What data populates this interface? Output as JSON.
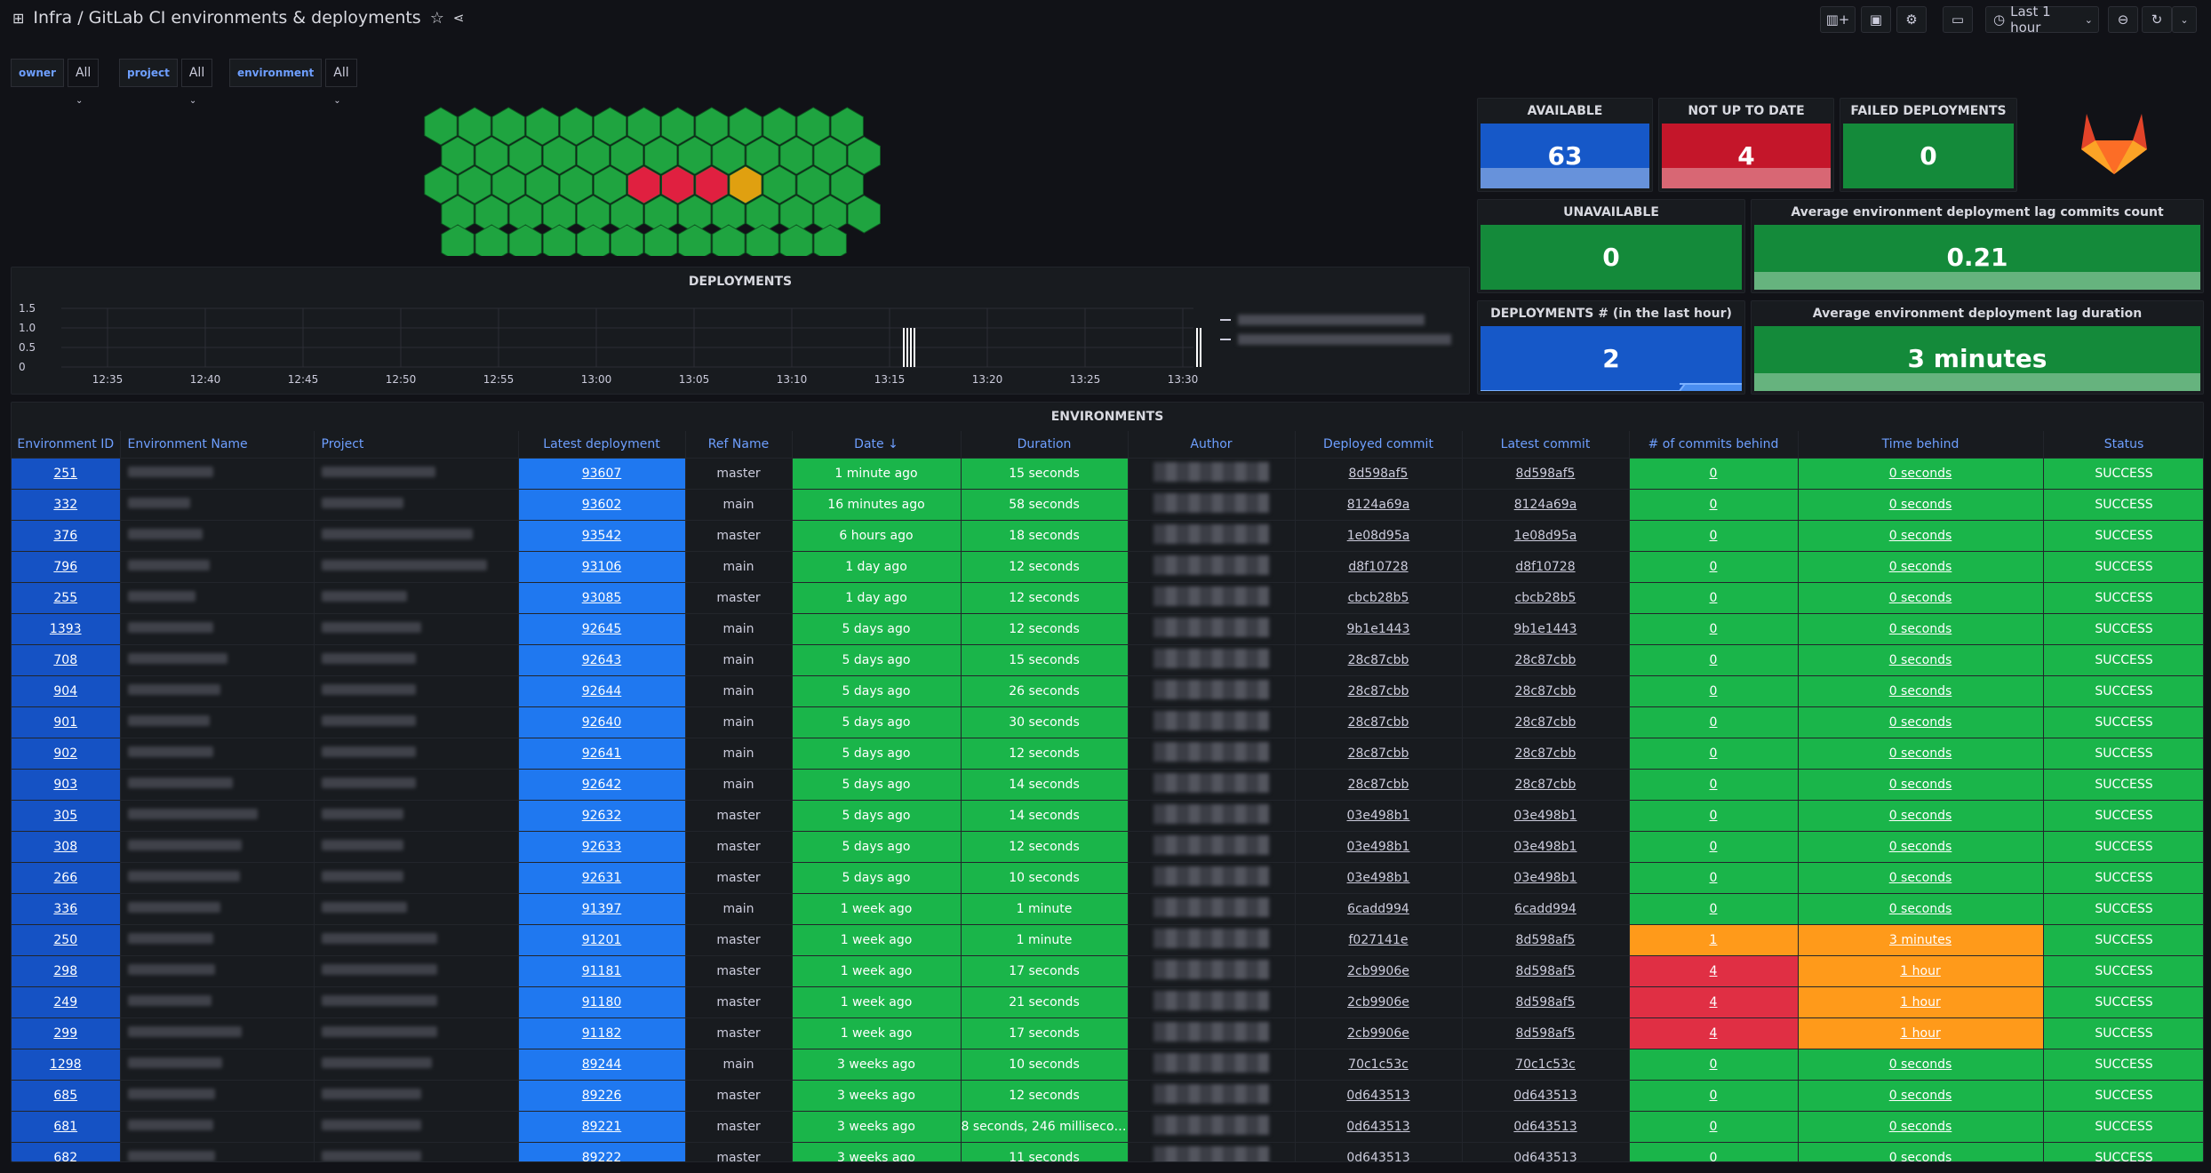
{
  "header": {
    "title": "Infra / GitLab CI environments & deployments",
    "time_range": "Last 1 hour"
  },
  "variables": [
    {
      "label": "owner",
      "value": "All"
    },
    {
      "label": "project",
      "value": "All"
    },
    {
      "label": "environment",
      "value": "All"
    }
  ],
  "stats": {
    "available": {
      "title": "AVAILABLE",
      "value": "63"
    },
    "not_up_to_date": {
      "title": "NOT UP TO DATE",
      "value": "4"
    },
    "failed": {
      "title": "FAILED DEPLOYMENTS",
      "value": "0"
    },
    "unavailable": {
      "title": "UNAVAILABLE",
      "value": "0"
    },
    "avg_lag_commits": {
      "title": "Average environment deployment lag commits count",
      "value": "0.21"
    },
    "deployments_hour": {
      "title": "DEPLOYMENTS # (in the last hour)",
      "value": "2"
    },
    "avg_lag_duration": {
      "title": "Average environment deployment lag duration",
      "value": "3 minutes"
    }
  },
  "hexmap": {
    "rows": 5,
    "cols": [
      13,
      13,
      13,
      13,
      12
    ],
    "red": [
      [
        2,
        6
      ],
      [
        2,
        7
      ],
      [
        2,
        8
      ]
    ],
    "yellow": [
      [
        2,
        9
      ]
    ],
    "colors": {
      "green": "#1fa440",
      "red": "#e02040",
      "yellow": "#e0a010"
    }
  },
  "chart_data": {
    "type": "bar",
    "title": "DEPLOYMENTS",
    "x": [
      "12:35",
      "12:40",
      "12:45",
      "12:50",
      "12:55",
      "13:00",
      "13:05",
      "13:10",
      "13:15",
      "13:20",
      "13:25",
      "13:30"
    ],
    "yticks": [
      "1.5",
      "1.0",
      "0.5",
      "0"
    ],
    "ylim": [
      0,
      1.5
    ],
    "bars": [
      {
        "x": "13:16",
        "value": 1
      },
      {
        "x": "13:31",
        "value": 1
      }
    ]
  },
  "table": {
    "title": "ENVIRONMENTS",
    "columns": [
      "Environment ID",
      "Environment Name",
      "Project",
      "Latest deployment",
      "Ref Name",
      "Date ↓",
      "Duration",
      "Author",
      "Deployed commit",
      "Latest commit",
      "# of commits behind",
      "Time behind",
      "Status"
    ],
    "rows": [
      [
        "251",
        "master",
        "1 minute ago",
        "15 seconds",
        "8d598af5",
        "8d598af5",
        "0",
        "0 seconds",
        "SUCCESS",
        "93607"
      ],
      [
        "332",
        "main",
        "16 minutes ago",
        "58 seconds",
        "8124a69a",
        "8124a69a",
        "0",
        "0 seconds",
        "SUCCESS",
        "93602"
      ],
      [
        "376",
        "master",
        "6 hours ago",
        "18 seconds",
        "1e08d95a",
        "1e08d95a",
        "0",
        "0 seconds",
        "SUCCESS",
        "93542"
      ],
      [
        "796",
        "main",
        "1 day ago",
        "12 seconds",
        "d8f10728",
        "d8f10728",
        "0",
        "0 seconds",
        "SUCCESS",
        "93106"
      ],
      [
        "255",
        "master",
        "1 day ago",
        "12 seconds",
        "cbcb28b5",
        "cbcb28b5",
        "0",
        "0 seconds",
        "SUCCESS",
        "93085"
      ],
      [
        "1393",
        "main",
        "5 days ago",
        "12 seconds",
        "9b1e1443",
        "9b1e1443",
        "0",
        "0 seconds",
        "SUCCESS",
        "92645"
      ],
      [
        "708",
        "main",
        "5 days ago",
        "15 seconds",
        "28c87cbb",
        "28c87cbb",
        "0",
        "0 seconds",
        "SUCCESS",
        "92643"
      ],
      [
        "904",
        "main",
        "5 days ago",
        "26 seconds",
        "28c87cbb",
        "28c87cbb",
        "0",
        "0 seconds",
        "SUCCESS",
        "92644"
      ],
      [
        "901",
        "main",
        "5 days ago",
        "30 seconds",
        "28c87cbb",
        "28c87cbb",
        "0",
        "0 seconds",
        "SUCCESS",
        "92640"
      ],
      [
        "902",
        "main",
        "5 days ago",
        "12 seconds",
        "28c87cbb",
        "28c87cbb",
        "0",
        "0 seconds",
        "SUCCESS",
        "92641"
      ],
      [
        "903",
        "main",
        "5 days ago",
        "14 seconds",
        "28c87cbb",
        "28c87cbb",
        "0",
        "0 seconds",
        "SUCCESS",
        "92642"
      ],
      [
        "305",
        "master",
        "5 days ago",
        "14 seconds",
        "03e498b1",
        "03e498b1",
        "0",
        "0 seconds",
        "SUCCESS",
        "92632"
      ],
      [
        "308",
        "master",
        "5 days ago",
        "12 seconds",
        "03e498b1",
        "03e498b1",
        "0",
        "0 seconds",
        "SUCCESS",
        "92633"
      ],
      [
        "266",
        "master",
        "5 days ago",
        "10 seconds",
        "03e498b1",
        "03e498b1",
        "0",
        "0 seconds",
        "SUCCESS",
        "92631"
      ],
      [
        "336",
        "main",
        "1 week ago",
        "1 minute",
        "6cadd994",
        "6cadd994",
        "0",
        "0 seconds",
        "SUCCESS",
        "91397"
      ],
      [
        "250",
        "master",
        "1 week ago",
        "1 minute",
        "f027141e",
        "8d598af5",
        "1",
        "3 minutes",
        "SUCCESS",
        "91201"
      ],
      [
        "298",
        "master",
        "1 week ago",
        "17 seconds",
        "2cb9906e",
        "8d598af5",
        "4",
        "1 hour",
        "SUCCESS",
        "91181"
      ],
      [
        "249",
        "master",
        "1 week ago",
        "21 seconds",
        "2cb9906e",
        "8d598af5",
        "4",
        "1 hour",
        "SUCCESS",
        "91180"
      ],
      [
        "299",
        "master",
        "1 week ago",
        "17 seconds",
        "2cb9906e",
        "8d598af5",
        "4",
        "1 hour",
        "SUCCESS",
        "91182"
      ],
      [
        "1298",
        "main",
        "3 weeks ago",
        "10 seconds",
        "70c1c53c",
        "70c1c53c",
        "0",
        "0 seconds",
        "SUCCESS",
        "89244"
      ],
      [
        "685",
        "master",
        "3 weeks ago",
        "12 seconds",
        "0d643513",
        "0d643513",
        "0",
        "0 seconds",
        "SUCCESS",
        "89226"
      ],
      [
        "681",
        "master",
        "3 weeks ago",
        "8 seconds, 246 millisecon...",
        "0d643513",
        "0d643513",
        "0",
        "0 seconds",
        "SUCCESS",
        "89221"
      ],
      [
        "682",
        "master",
        "3 weeks ago",
        "11 seconds",
        "0d643513",
        "0d643513",
        "0",
        "0 seconds",
        "SUCCESS",
        "89222"
      ]
    ]
  }
}
